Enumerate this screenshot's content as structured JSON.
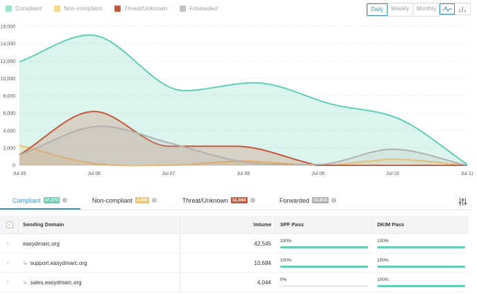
{
  "legend": [
    {
      "label": "Compliant",
      "color": "#5ecfb3"
    },
    {
      "label": "Non-compliant",
      "color": "#f0c36a"
    },
    {
      "label": "Threat/Unknown",
      "color": "#c3593a"
    },
    {
      "label": "Forwarded",
      "color": "#c3c3c3"
    }
  ],
  "period": {
    "options": [
      "Daily",
      "Weekly",
      "Monthly"
    ],
    "selected": "Daily"
  },
  "chart_type": {
    "options": [
      "line-chart-icon",
      "bar-chart-icon"
    ],
    "selected": "line-chart-icon"
  },
  "chart_data": {
    "type": "area",
    "x": [
      "Jul 05",
      "Jul 06",
      "Jul 07",
      "Jul 08",
      "Jul 09",
      "Jul 10",
      "Jul 11"
    ],
    "ylim": [
      0,
      16000
    ],
    "yticks": [
      "0",
      "2,000",
      "4,000",
      "6,000",
      "8,000",
      "10,000",
      "12,000",
      "14,000",
      "16,000"
    ],
    "grid": true,
    "series": [
      {
        "name": "Compliant",
        "color": "#5ecfb3",
        "points": [
          [
            0,
            11900
          ],
          [
            0.95,
            15000
          ],
          [
            2.2,
            8600
          ],
          [
            3.15,
            9500
          ],
          [
            4.2,
            7000
          ],
          [
            5.1,
            5300
          ],
          [
            6,
            100
          ]
        ]
      },
      {
        "name": "Non-compliant",
        "color": "#f0c36a",
        "points": [
          [
            0,
            2300
          ],
          [
            1,
            200
          ],
          [
            2,
            0
          ],
          [
            3,
            500
          ],
          [
            4,
            0
          ],
          [
            4.5,
            300
          ],
          [
            5,
            700
          ],
          [
            6,
            0
          ]
        ]
      },
      {
        "name": "Threat/Unknown",
        "color": "#c3593a",
        "points": [
          [
            0,
            1200
          ],
          [
            1,
            6200
          ],
          [
            2,
            2200
          ],
          [
            2.9,
            2200
          ],
          [
            3.9,
            200
          ],
          [
            4,
            0
          ],
          [
            5,
            0
          ],
          [
            6,
            0
          ]
        ]
      },
      {
        "name": "Forwarded",
        "color": "#b0b0b0",
        "points": [
          [
            0,
            1200
          ],
          [
            1.1,
            4500
          ],
          [
            2,
            2600
          ],
          [
            3,
            400
          ],
          [
            4,
            100
          ],
          [
            5,
            1850
          ],
          [
            6,
            0
          ]
        ]
      }
    ]
  },
  "tabs": [
    {
      "label": "Compliant",
      "count": "57,273",
      "color": "#5ecfb3"
    },
    {
      "label": "Non-compliant",
      "count": "3,680",
      "color": "#f0c36a"
    },
    {
      "label": "Threat/Unknown",
      "count": "11,944",
      "color": "#c3593a"
    },
    {
      "label": "Forwarded",
      "count": "10,818",
      "color": "#b0b0b0"
    }
  ],
  "table": {
    "columns": {
      "domain": "Sending Domain",
      "volume": "Volume",
      "spf": "SPF Pass",
      "dkim": "DKIM Pass"
    },
    "rows": [
      {
        "domain": "easydmarc.org",
        "sub": false,
        "volume": "42,545",
        "spf": "100%",
        "spf_value": 100,
        "dkim": "100%",
        "dkim_value": 100
      },
      {
        "domain": "support.easydmarc.org",
        "sub": true,
        "volume": "10,684",
        "spf": "100%",
        "spf_value": 100,
        "dkim": "100%",
        "dkim_value": 100
      },
      {
        "domain": "sales.easydmarc.org",
        "sub": true,
        "volume": "4,044",
        "spf": "0%",
        "spf_value": 0,
        "dkim": "100%",
        "dkim_value": 100
      }
    ]
  }
}
